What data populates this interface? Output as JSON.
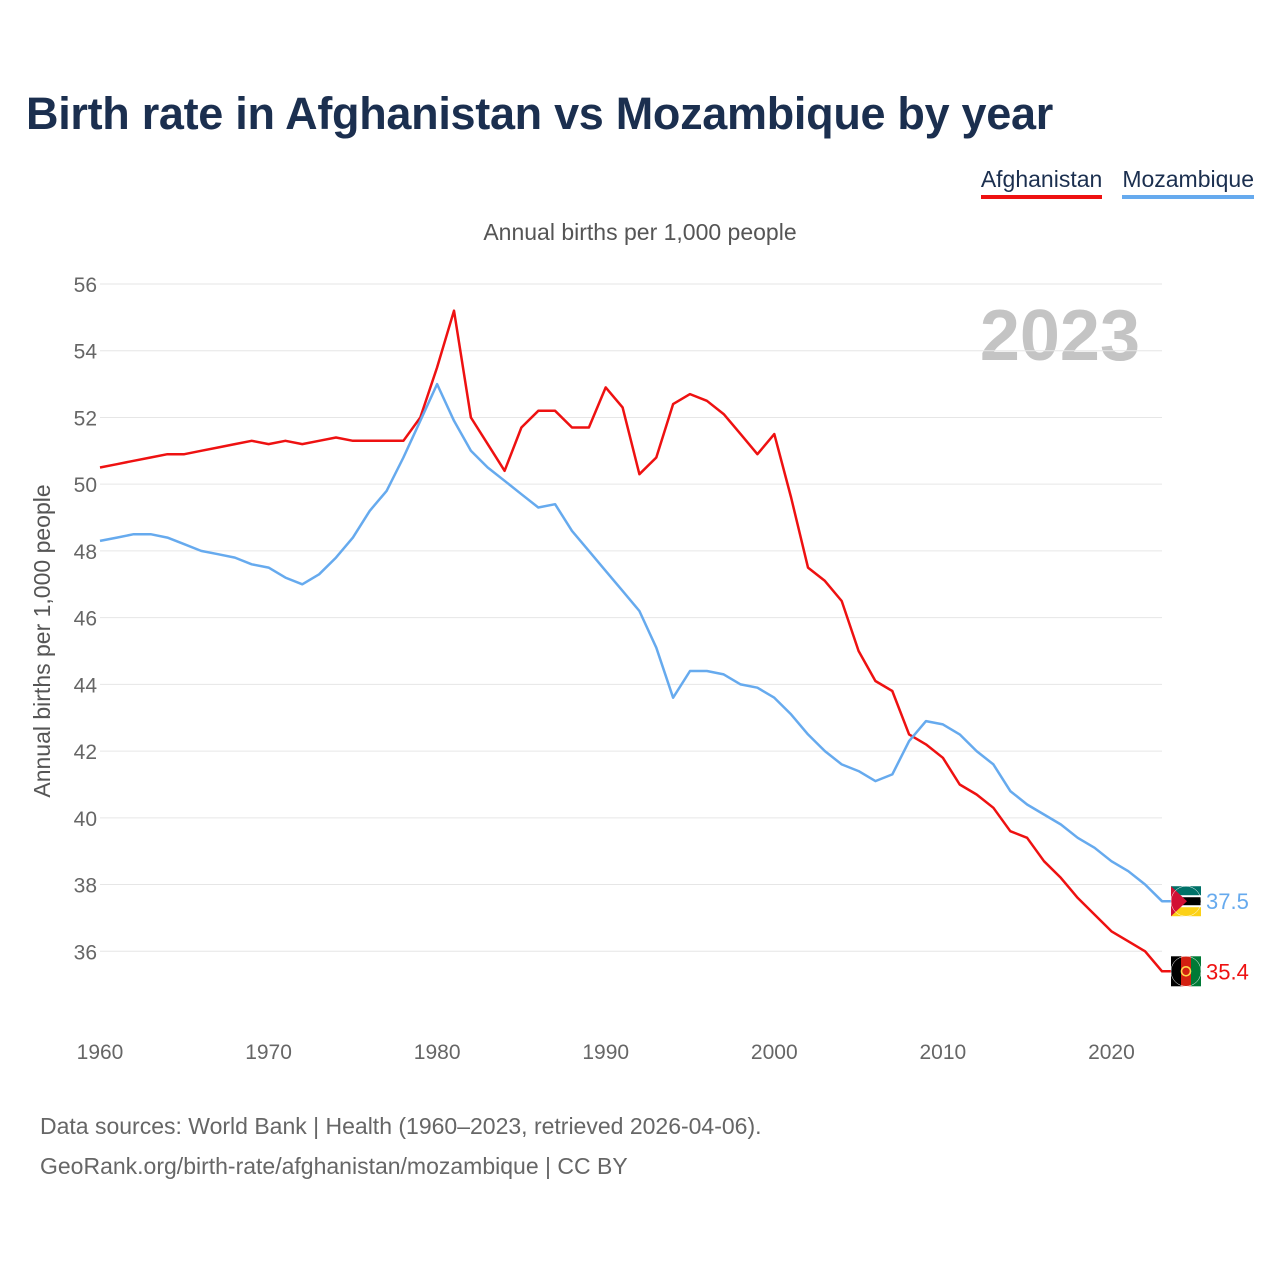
{
  "title": "Birth rate in Afghanistan vs Mozambique by year",
  "legend": [
    {
      "name": "Afghanistan",
      "color": "#ee1111"
    },
    {
      "name": "Mozambique",
      "color": "#66aaee"
    }
  ],
  "year_label": "2023",
  "source": {
    "line1": "Data sources: World Bank | Health (1960–2023, retrieved 2026-04-06).",
    "line2": "GeoRank.org/birth-rate/afghanistan/mozambique | CC BY"
  },
  "chart_data": {
    "type": "line",
    "title": "Annual births per 1,000 people",
    "xlabel": "",
    "ylabel": "Annual births per 1,000 people",
    "xlim": [
      1960,
      2023
    ],
    "ylim": [
      34,
      56
    ],
    "yticks": [
      36,
      38,
      40,
      42,
      44,
      46,
      48,
      50,
      52,
      54,
      56
    ],
    "xticks": [
      1960,
      1970,
      1980,
      1990,
      2000,
      2010,
      2020
    ],
    "grid": true,
    "x": [
      1960,
      1961,
      1962,
      1963,
      1964,
      1965,
      1966,
      1967,
      1968,
      1969,
      1970,
      1971,
      1972,
      1973,
      1974,
      1975,
      1976,
      1977,
      1978,
      1979,
      1980,
      1981,
      1982,
      1983,
      1984,
      1985,
      1986,
      1987,
      1988,
      1989,
      1990,
      1991,
      1992,
      1993,
      1994,
      1995,
      1996,
      1997,
      1998,
      1999,
      2000,
      2001,
      2002,
      2003,
      2004,
      2005,
      2006,
      2007,
      2008,
      2009,
      2010,
      2011,
      2012,
      2013,
      2014,
      2015,
      2016,
      2017,
      2018,
      2019,
      2020,
      2021,
      2022,
      2023
    ],
    "series": [
      {
        "name": "Afghanistan",
        "color": "#ee1111",
        "end_label": "35.4",
        "values": [
          50.5,
          50.6,
          50.7,
          50.8,
          50.9,
          50.9,
          51.0,
          51.1,
          51.2,
          51.3,
          51.2,
          51.3,
          51.2,
          51.3,
          51.4,
          51.3,
          51.3,
          51.3,
          51.3,
          52.0,
          53.5,
          55.2,
          52.0,
          51.2,
          50.4,
          51.7,
          52.2,
          52.2,
          51.7,
          51.7,
          52.9,
          52.3,
          50.3,
          50.8,
          52.4,
          52.7,
          52.5,
          52.1,
          51.5,
          50.9,
          51.5,
          49.6,
          47.5,
          47.1,
          46.5,
          45.0,
          44.1,
          43.8,
          42.5,
          42.2,
          41.8,
          41.0,
          40.7,
          40.3,
          39.6,
          39.4,
          38.7,
          38.2,
          37.6,
          37.1,
          36.6,
          36.3,
          36.0,
          35.4
        ]
      },
      {
        "name": "Mozambique",
        "color": "#66aaee",
        "end_label": "37.5",
        "values": [
          48.3,
          48.4,
          48.5,
          48.5,
          48.4,
          48.2,
          48.0,
          47.9,
          47.8,
          47.6,
          47.5,
          47.2,
          47.0,
          47.3,
          47.8,
          48.4,
          49.2,
          49.8,
          50.8,
          51.9,
          53.0,
          51.9,
          51.0,
          50.5,
          50.1,
          49.7,
          49.3,
          49.4,
          48.6,
          48.0,
          47.4,
          46.8,
          46.2,
          45.1,
          43.6,
          44.4,
          44.4,
          44.3,
          44.0,
          43.9,
          43.6,
          43.1,
          42.5,
          42.0,
          41.6,
          41.4,
          41.1,
          41.3,
          42.3,
          42.9,
          42.8,
          42.5,
          42.0,
          41.6,
          40.8,
          40.4,
          40.1,
          39.8,
          39.4,
          39.1,
          38.7,
          38.4,
          38.0,
          37.5
        ]
      }
    ]
  }
}
